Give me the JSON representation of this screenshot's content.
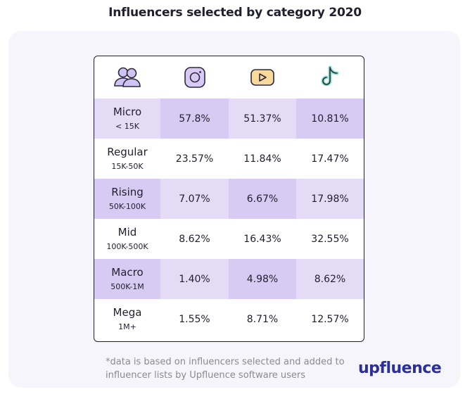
{
  "title": "Influencers selected by category 2020",
  "colors": {
    "highlight_row": "#e4dcf7",
    "highlight_cell": "#d7cbf3",
    "accent": "#b69ef0",
    "logo": "#2b2f9a"
  },
  "chart_data": {
    "type": "table",
    "title": "Influencers selected by category 2020",
    "columns": [
      {
        "icon": "people-icon"
      },
      {
        "icon": "instagram-icon"
      },
      {
        "icon": "youtube-icon"
      },
      {
        "icon": "tiktok-icon"
      }
    ],
    "rows": [
      {
        "category": "Micro",
        "range": "< 15K",
        "instagram": "57.8%",
        "youtube": "51.37%",
        "tiktok": "10.81%",
        "highlight": true
      },
      {
        "category": "Regular",
        "range": "15K-50K",
        "instagram": "23.57%",
        "youtube": "11.84%",
        "tiktok": "17.47%",
        "highlight": false
      },
      {
        "category": "Rising",
        "range": "50K-100K",
        "instagram": "7.07%",
        "youtube": "6.67%",
        "tiktok": "17.98%",
        "highlight": true
      },
      {
        "category": "Mid",
        "range": "100K-500K",
        "instagram": "8.62%",
        "youtube": "16.43%",
        "tiktok": "32.55%",
        "highlight": false
      },
      {
        "category": "Macro",
        "range": "500K-1M",
        "instagram": "1.40%",
        "youtube": "4.98%",
        "tiktok": "8.62%",
        "highlight": true
      },
      {
        "category": "Mega",
        "range": "1M+",
        "instagram": "1.55%",
        "youtube": "8.71%",
        "tiktok": "12.57%",
        "highlight": false
      }
    ]
  },
  "footnote": "*data is based on influencers selected and added to influencer lists by Upfluence software users",
  "logo_text": "upfluence"
}
